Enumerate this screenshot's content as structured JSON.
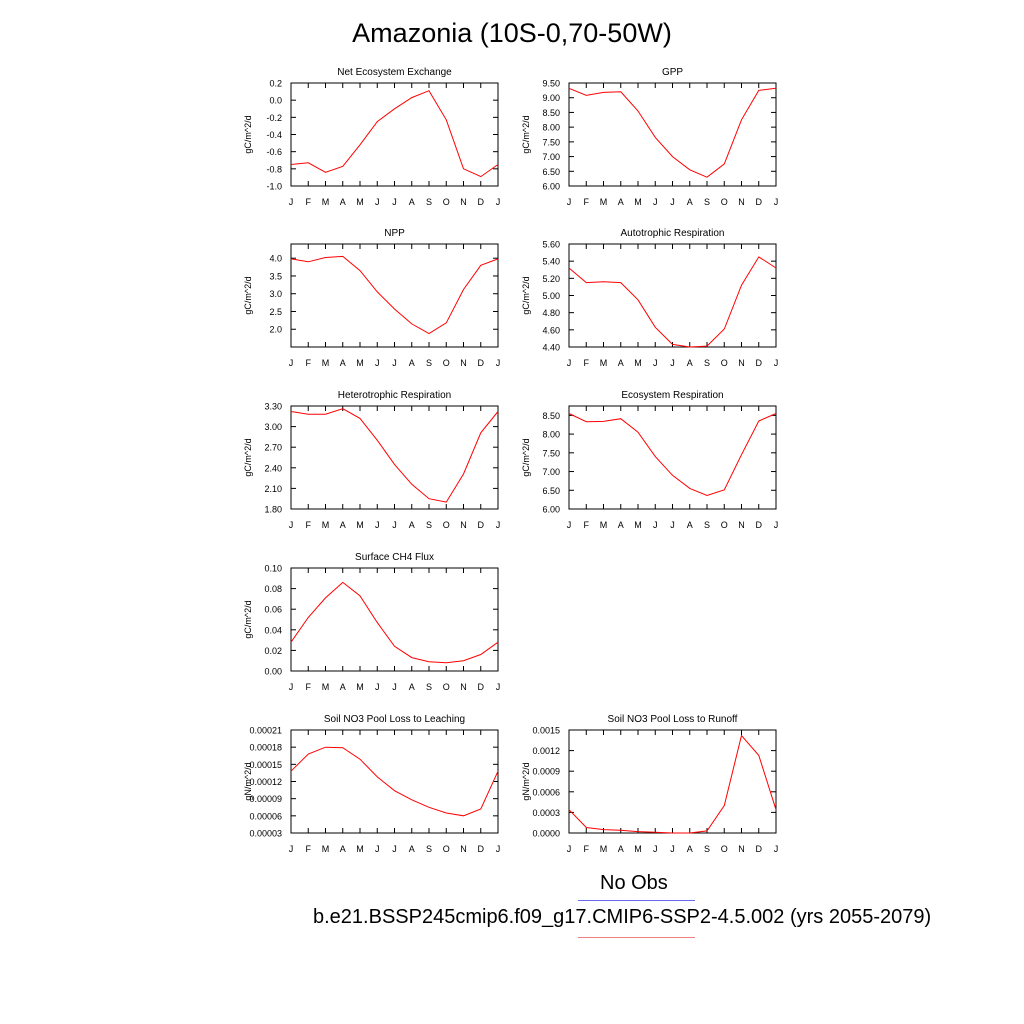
{
  "page": {
    "title": "Amazonia (10S-0,70-50W)"
  },
  "legend": {
    "no_obs": "No Obs",
    "case_label": "b.e21.BSSP245cmip6.f09_g17.CMIP6-SSP2-4.5.002 (yrs 2055-2079)",
    "obs_color": "#6a6af0",
    "case_color": "#f08080"
  },
  "colors": {
    "series": "#ff0000",
    "axis": "#000000"
  },
  "chart_data": [
    {
      "type": "line",
      "title": "Net Ecosystem Exchange",
      "ylabel": "gC/m^2/d",
      "x": [
        "J",
        "F",
        "M",
        "A",
        "M",
        "J",
        "J",
        "A",
        "S",
        "O",
        "N",
        "D",
        "J"
      ],
      "ylim": [
        -1.0,
        0.2
      ],
      "yticks": [
        "0.2",
        "0.0",
        "-0.2",
        "-0.4",
        "-0.6",
        "-0.8",
        "-1.0"
      ],
      "ytick_values": [
        0.2,
        0.0,
        -0.2,
        -0.4,
        -0.6,
        -0.8,
        -1.0
      ],
      "values": [
        -0.75,
        -0.73,
        -0.84,
        -0.77,
        -0.52,
        -0.25,
        -0.1,
        0.03,
        0.11,
        -0.23,
        -0.8,
        -0.89,
        -0.75
      ]
    },
    {
      "type": "line",
      "title": "GPP",
      "ylabel": "gC/m^2/d",
      "x": [
        "J",
        "F",
        "M",
        "A",
        "M",
        "J",
        "J",
        "A",
        "S",
        "O",
        "N",
        "D",
        "J"
      ],
      "ylim": [
        6.0,
        9.5
      ],
      "yticks": [
        "9.50",
        "9.00",
        "8.50",
        "8.00",
        "7.50",
        "7.00",
        "6.50",
        "6.00"
      ],
      "ytick_values": [
        9.5,
        9.0,
        8.5,
        8.0,
        7.5,
        7.0,
        6.5,
        6.0
      ],
      "values": [
        9.32,
        9.08,
        9.18,
        9.2,
        8.55,
        7.65,
        7.0,
        6.55,
        6.3,
        6.75,
        8.25,
        9.25,
        9.32
      ]
    },
    {
      "type": "line",
      "title": "NPP",
      "ylabel": "gC/m^2/d",
      "x": [
        "J",
        "F",
        "M",
        "A",
        "M",
        "J",
        "J",
        "A",
        "S",
        "O",
        "N",
        "D",
        "J"
      ],
      "ylim": [
        1.5,
        4.4
      ],
      "yticks": [
        "4.0",
        "3.5",
        "3.0",
        "2.5",
        "2.0"
      ],
      "ytick_values": [
        4.0,
        3.5,
        3.0,
        2.5,
        2.0
      ],
      "values": [
        3.98,
        3.9,
        4.02,
        4.05,
        3.65,
        3.05,
        2.57,
        2.15,
        1.88,
        2.18,
        3.12,
        3.8,
        3.98
      ]
    },
    {
      "type": "line",
      "title": "Autotrophic Respiration",
      "ylabel": "gC/m^2/d",
      "x": [
        "J",
        "F",
        "M",
        "A",
        "M",
        "J",
        "J",
        "A",
        "S",
        "O",
        "N",
        "D",
        "J"
      ],
      "ylim": [
        4.4,
        5.6
      ],
      "yticks": [
        "5.60",
        "5.40",
        "5.20",
        "5.00",
        "4.80",
        "4.60",
        "4.40"
      ],
      "ytick_values": [
        5.6,
        5.4,
        5.2,
        5.0,
        4.8,
        4.6,
        4.4
      ],
      "values": [
        5.32,
        5.15,
        5.16,
        5.15,
        4.95,
        4.63,
        4.43,
        4.4,
        4.41,
        4.61,
        5.12,
        5.45,
        5.32
      ]
    },
    {
      "type": "line",
      "title": "Heterotrophic Respiration",
      "ylabel": "gC/m^2/d",
      "x": [
        "J",
        "F",
        "M",
        "A",
        "M",
        "J",
        "J",
        "A",
        "S",
        "O",
        "N",
        "D",
        "J"
      ],
      "ylim": [
        1.8,
        3.3
      ],
      "yticks": [
        "3.30",
        "3.00",
        "2.70",
        "2.40",
        "2.10",
        "1.80"
      ],
      "ytick_values": [
        3.3,
        3.0,
        2.7,
        2.4,
        2.1,
        1.8
      ],
      "values": [
        3.22,
        3.18,
        3.18,
        3.26,
        3.12,
        2.8,
        2.45,
        2.16,
        1.95,
        1.9,
        2.31,
        2.91,
        3.22
      ]
    },
    {
      "type": "line",
      "title": "Ecosystem Respiration",
      "ylabel": "gC/m^2/d",
      "x": [
        "J",
        "F",
        "M",
        "A",
        "M",
        "J",
        "J",
        "A",
        "S",
        "O",
        "N",
        "D",
        "J"
      ],
      "ylim": [
        6.0,
        8.75
      ],
      "yticks": [
        "8.50",
        "8.00",
        "7.50",
        "7.00",
        "6.50",
        "6.00"
      ],
      "ytick_values": [
        8.5,
        8.0,
        7.5,
        7.0,
        6.5,
        6.0
      ],
      "values": [
        8.55,
        8.33,
        8.34,
        8.41,
        8.05,
        7.4,
        6.9,
        6.55,
        6.36,
        6.51,
        7.45,
        8.35,
        8.55
      ]
    },
    {
      "type": "line",
      "title": "Surface CH4 Flux",
      "ylabel": "gC/m^2/d",
      "x": [
        "J",
        "F",
        "M",
        "A",
        "M",
        "J",
        "J",
        "A",
        "S",
        "O",
        "N",
        "D",
        "J"
      ],
      "ylim": [
        0.0,
        0.1
      ],
      "yticks": [
        "0.10",
        "0.08",
        "0.06",
        "0.04",
        "0.02",
        "0.00"
      ],
      "ytick_values": [
        0.1,
        0.08,
        0.06,
        0.04,
        0.02,
        0.0
      ],
      "values": [
        0.028,
        0.052,
        0.071,
        0.086,
        0.073,
        0.047,
        0.024,
        0.013,
        0.009,
        0.008,
        0.01,
        0.016,
        0.028
      ]
    },
    {
      "type": "line",
      "title": "Soil NO3 Pool Loss to Leaching",
      "ylabel": "gN/m^2/d",
      "x": [
        "J",
        "F",
        "M",
        "A",
        "M",
        "J",
        "J",
        "A",
        "S",
        "O",
        "N",
        "D",
        "J"
      ],
      "ylim": [
        3e-05,
        0.00021
      ],
      "yticks": [
        "0.00021",
        "0.00018",
        "0.00015",
        "0.00012",
        "0.00009",
        "0.00006",
        "0.00003"
      ],
      "ytick_values": [
        0.00021,
        0.00018,
        0.00015,
        0.00012,
        9e-05,
        6e-05,
        3e-05
      ],
      "values": [
        0.000138,
        0.000168,
        0.00018,
        0.000179,
        0.000159,
        0.000128,
        0.000104,
        8.8e-05,
        7.5e-05,
        6.5e-05,
        6e-05,
        7.2e-05,
        0.000138
      ]
    },
    {
      "type": "line",
      "title": "Soil NO3 Pool Loss to Runoff",
      "ylabel": "gN/m^2/d",
      "x": [
        "J",
        "F",
        "M",
        "A",
        "M",
        "J",
        "J",
        "A",
        "S",
        "O",
        "N",
        "D",
        "J"
      ],
      "ylim": [
        0.0,
        0.0015
      ],
      "yticks": [
        "0.0015",
        "0.0012",
        "0.0009",
        "0.0006",
        "0.0003",
        "0.0000"
      ],
      "ytick_values": [
        0.0015,
        0.0012,
        0.0009,
        0.0006,
        0.0003,
        0.0
      ],
      "values": [
        0.00034,
        8e-05,
        5e-05,
        4e-05,
        2e-05,
        1e-05,
        0.0,
        0.0,
        3e-05,
        0.0004,
        0.00142,
        0.00113,
        0.00034
      ]
    }
  ]
}
